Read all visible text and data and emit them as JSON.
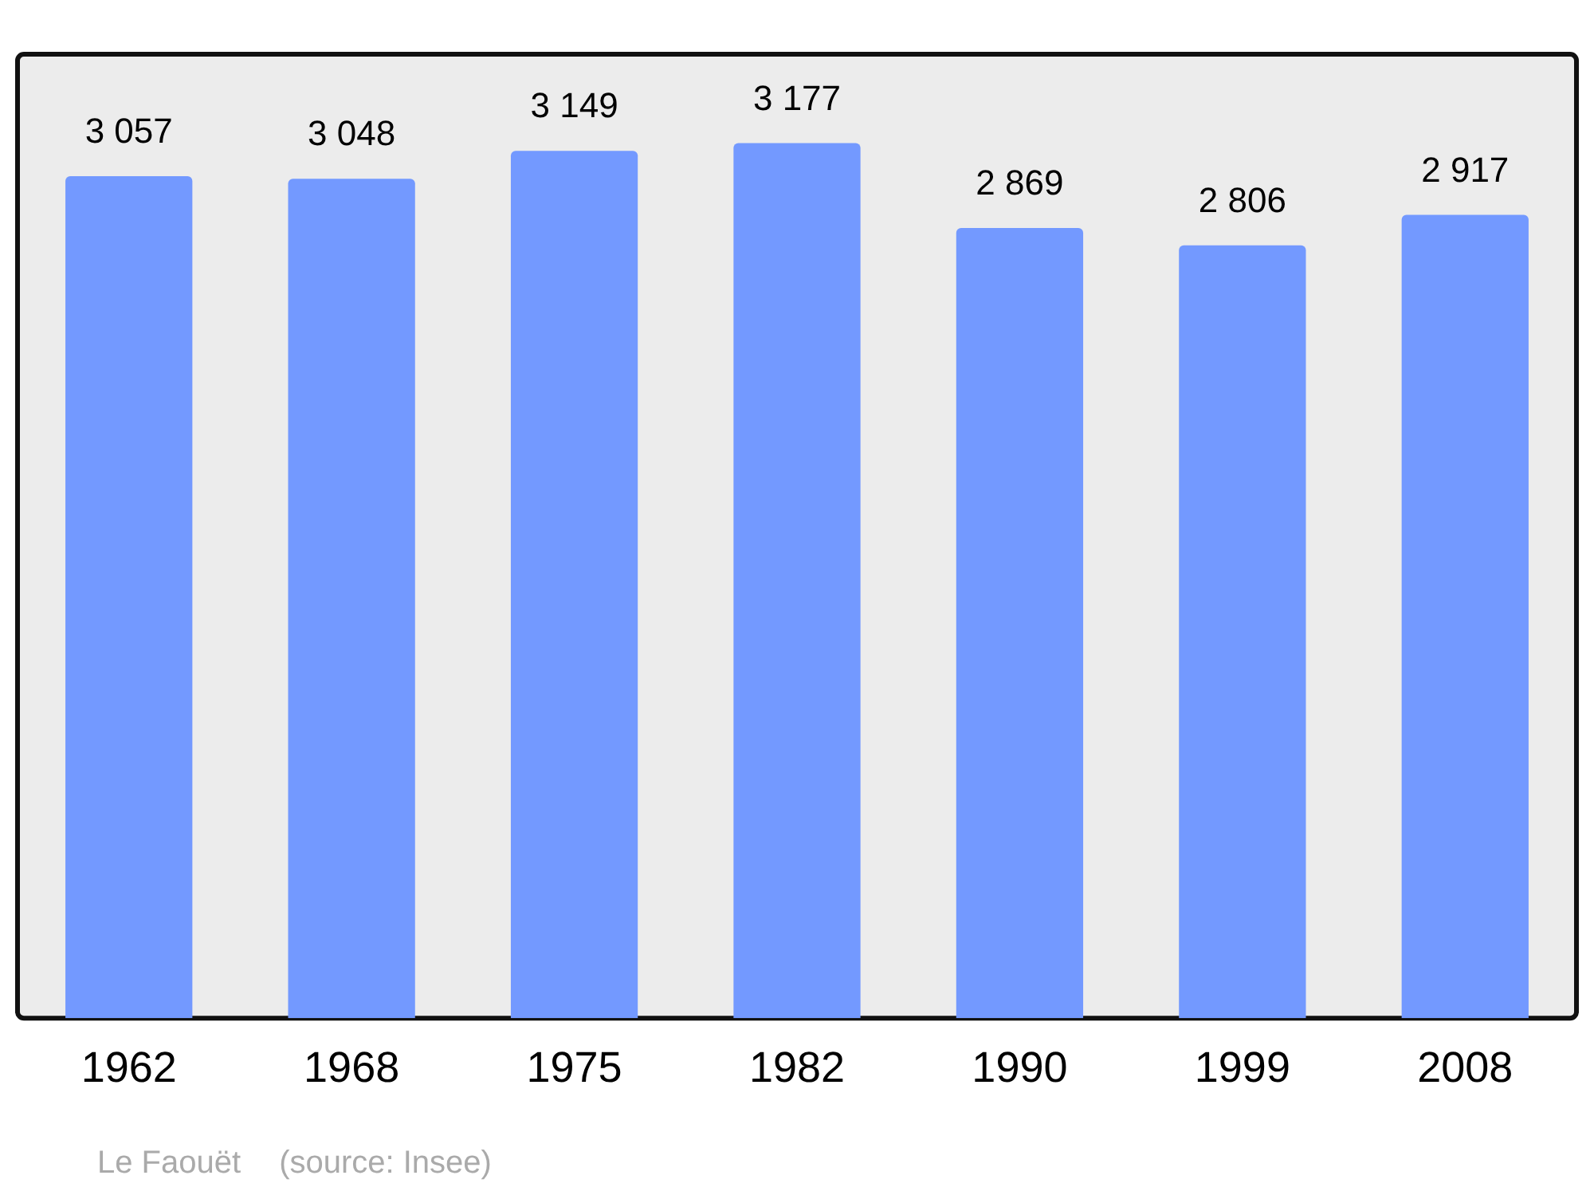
{
  "chart_data": {
    "type": "bar",
    "categories": [
      "1962",
      "1968",
      "1975",
      "1982",
      "1990",
      "1999",
      "2008"
    ],
    "values": [
      3057,
      3048,
      3149,
      3177,
      2869,
      2806,
      2917
    ],
    "value_labels": [
      "3 057",
      "3 048",
      "3 149",
      "3 177",
      "2 869",
      "2 806",
      "2 917"
    ],
    "color": "#7399ff",
    "ylim": [
      0,
      3500
    ],
    "tick_labels": "x",
    "grid": false,
    "legend": false,
    "annotations": [
      "Le Faouët",
      "(source: Insee)"
    ]
  }
}
